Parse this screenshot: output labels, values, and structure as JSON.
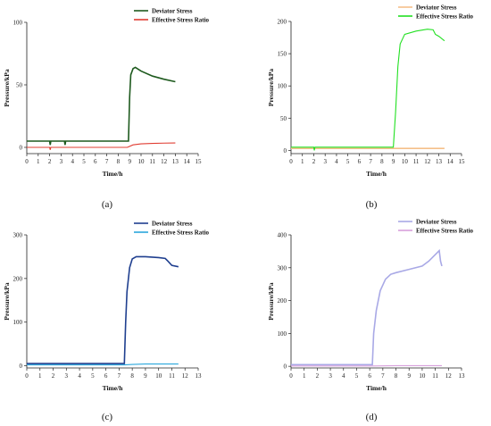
{
  "chart_data": [
    {
      "type": "line",
      "panel_label": "(a)",
      "xlabel": "Time/h",
      "ylabel": "Pressure/kPa",
      "xlim": [
        0,
        15
      ],
      "ylim": [
        -5,
        100
      ],
      "xticks": [
        0,
        1,
        2,
        3,
        4,
        5,
        6,
        7,
        8,
        9,
        10,
        11,
        12,
        13,
        14,
        15
      ],
      "yticks": [
        0,
        50,
        100
      ],
      "legend_position": "top-right",
      "series": [
        {
          "name": "Deviator Stress",
          "color": "#1e5a1e",
          "points": [
            [
              0,
              5
            ],
            [
              2,
              5
            ],
            [
              2.05,
              2
            ],
            [
              2.1,
              5
            ],
            [
              3.3,
              5
            ],
            [
              3.35,
              2
            ],
            [
              3.4,
              5
            ],
            [
              8.9,
              5
            ],
            [
              9.0,
              40
            ],
            [
              9.1,
              58
            ],
            [
              9.3,
              63
            ],
            [
              9.5,
              64
            ],
            [
              10,
              61
            ],
            [
              11,
              57
            ],
            [
              12,
              54.5
            ],
            [
              13,
              52.5
            ]
          ]
        },
        {
          "name": "Effective Stress Ratio",
          "color": "#e03c31",
          "points": [
            [
              0,
              0
            ],
            [
              2.0,
              0
            ],
            [
              2.05,
              -2
            ],
            [
              2.1,
              0
            ],
            [
              8.8,
              0
            ],
            [
              9.3,
              2
            ],
            [
              10,
              2.8
            ],
            [
              11,
              3.2
            ],
            [
              12,
              3.4
            ],
            [
              13,
              3.5
            ]
          ]
        }
      ]
    },
    {
      "type": "line",
      "panel_label": "(b)",
      "xlabel": "Time/h",
      "ylabel": "Pressure/kPa",
      "xlim": [
        0,
        15
      ],
      "ylim": [
        -5,
        200
      ],
      "xticks": [
        0,
        1,
        2,
        3,
        4,
        5,
        6,
        7,
        8,
        9,
        10,
        11,
        12,
        13,
        14,
        15
      ],
      "yticks": [
        0,
        50,
        100,
        150,
        200
      ],
      "legend_position": "top-right",
      "series": [
        {
          "name": "Deviator Stress",
          "color": "#f5c08a",
          "points": [
            [
              0,
              3
            ],
            [
              9,
              3
            ],
            [
              10,
              3
            ],
            [
              13.5,
              3
            ]
          ]
        },
        {
          "name": "Effective Stress Ratio",
          "color": "#22e022",
          "points": [
            [
              0,
              5
            ],
            [
              2.0,
              5
            ],
            [
              2.05,
              0
            ],
            [
              2.1,
              5
            ],
            [
              9.0,
              5
            ],
            [
              9.2,
              60
            ],
            [
              9.4,
              130
            ],
            [
              9.6,
              165
            ],
            [
              10,
              180
            ],
            [
              11,
              185
            ],
            [
              12,
              188
            ],
            [
              12.5,
              187
            ],
            [
              12.7,
              180
            ],
            [
              13,
              177
            ],
            [
              13.5,
              170
            ]
          ]
        }
      ]
    },
    {
      "type": "line",
      "panel_label": "(c)",
      "xlabel": "Time/h",
      "ylabel": "Pressure/kPa",
      "xlim": [
        0,
        13
      ],
      "ylim": [
        -5,
        300
      ],
      "xticks": [
        0,
        1,
        2,
        3,
        4,
        5,
        6,
        7,
        8,
        9,
        10,
        11,
        12,
        13
      ],
      "yticks": [
        0,
        100,
        200,
        300
      ],
      "legend_position": "top-right",
      "series": [
        {
          "name": "Deviator Stress",
          "color": "#1f3f8f",
          "points": [
            [
              0,
              5
            ],
            [
              7.4,
              5
            ],
            [
              7.5,
              100
            ],
            [
              7.6,
              170
            ],
            [
              7.8,
              225
            ],
            [
              8,
              245
            ],
            [
              8.3,
              250
            ],
            [
              9,
              250
            ],
            [
              10,
              248
            ],
            [
              10.5,
              246
            ],
            [
              10.7,
              240
            ],
            [
              11,
              230
            ],
            [
              11.5,
              227
            ]
          ]
        },
        {
          "name": "Effective Stress Ratio",
          "color": "#2aa7dc",
          "points": [
            [
              0,
              2
            ],
            [
              7.4,
              2
            ],
            [
              8,
              3
            ],
            [
              9,
              4
            ],
            [
              11.5,
              4
            ]
          ]
        }
      ]
    },
    {
      "type": "line",
      "panel_label": "(d)",
      "xlabel": "Time/h",
      "ylabel": "Pressure/kPa",
      "xlim": [
        0,
        13
      ],
      "ylim": [
        -5,
        400
      ],
      "xticks": [
        0,
        1,
        2,
        3,
        4,
        5,
        6,
        7,
        8,
        9,
        10,
        11,
        12,
        13
      ],
      "yticks": [
        0,
        100,
        200,
        300,
        400
      ],
      "legend_position": "top-right",
      "series": [
        {
          "name": "Deviator Stress",
          "color": "#a9a9e6",
          "points": [
            [
              0,
              5
            ],
            [
              6.2,
              5
            ],
            [
              6.3,
              100
            ],
            [
              6.5,
              170
            ],
            [
              6.8,
              230
            ],
            [
              7.2,
              265
            ],
            [
              7.6,
              280
            ],
            [
              8,
              285
            ],
            [
              9,
              295
            ],
            [
              10,
              305
            ],
            [
              10.5,
              320
            ],
            [
              11,
              340
            ],
            [
              11.3,
              352
            ],
            [
              11.4,
              320
            ],
            [
              11.5,
              305
            ]
          ]
        },
        {
          "name": "Effective Stress Ratio",
          "color": "#d8a0dc",
          "points": [
            [
              0,
              1
            ],
            [
              6.2,
              1
            ],
            [
              8,
              2
            ],
            [
              11.5,
              2
            ]
          ]
        }
      ]
    }
  ]
}
